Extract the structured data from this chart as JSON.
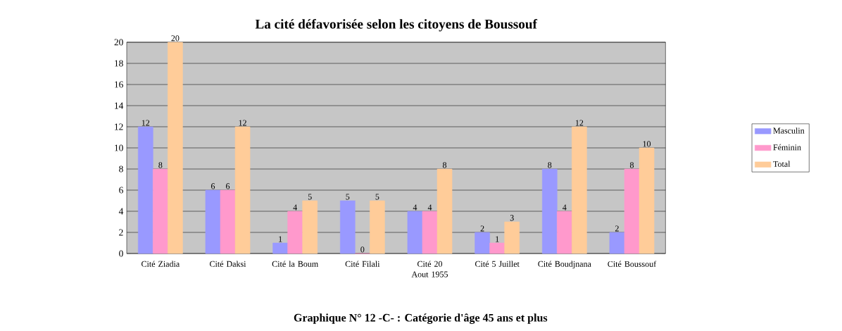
{
  "chart_data": {
    "type": "bar",
    "title": "La cité défavorisée selon les citoyens de Boussouf",
    "categories": [
      "Cité Ziadia",
      "Cité Daksi",
      "Cité la Boum",
      "Cité Filali",
      "Cité 20 Aout 1955",
      "Cité 5 Juillet",
      "Cité Boudjnana",
      "Cité Boussouf"
    ],
    "series": [
      {
        "name": "Masculin",
        "color": "#9999ff",
        "values": [
          12,
          6,
          1,
          5,
          4,
          2,
          8,
          2
        ]
      },
      {
        "name": "Féminin",
        "color": "#ff99cc",
        "values": [
          8,
          6,
          4,
          0,
          4,
          1,
          4,
          8
        ]
      },
      {
        "name": "Total",
        "color": "#ffcc99",
        "values": [
          20,
          12,
          5,
          5,
          8,
          3,
          12,
          10
        ]
      }
    ],
    "ylim": [
      0,
      20
    ],
    "yticks": [
      0,
      2,
      4,
      6,
      8,
      10,
      12,
      14,
      16,
      18,
      20
    ],
    "grid": "y",
    "legend": "right",
    "data_labels": true,
    "annotations": [
      "Graphique N° 12 -C- : Catégorie d'âge 45 ans et plus"
    ]
  }
}
